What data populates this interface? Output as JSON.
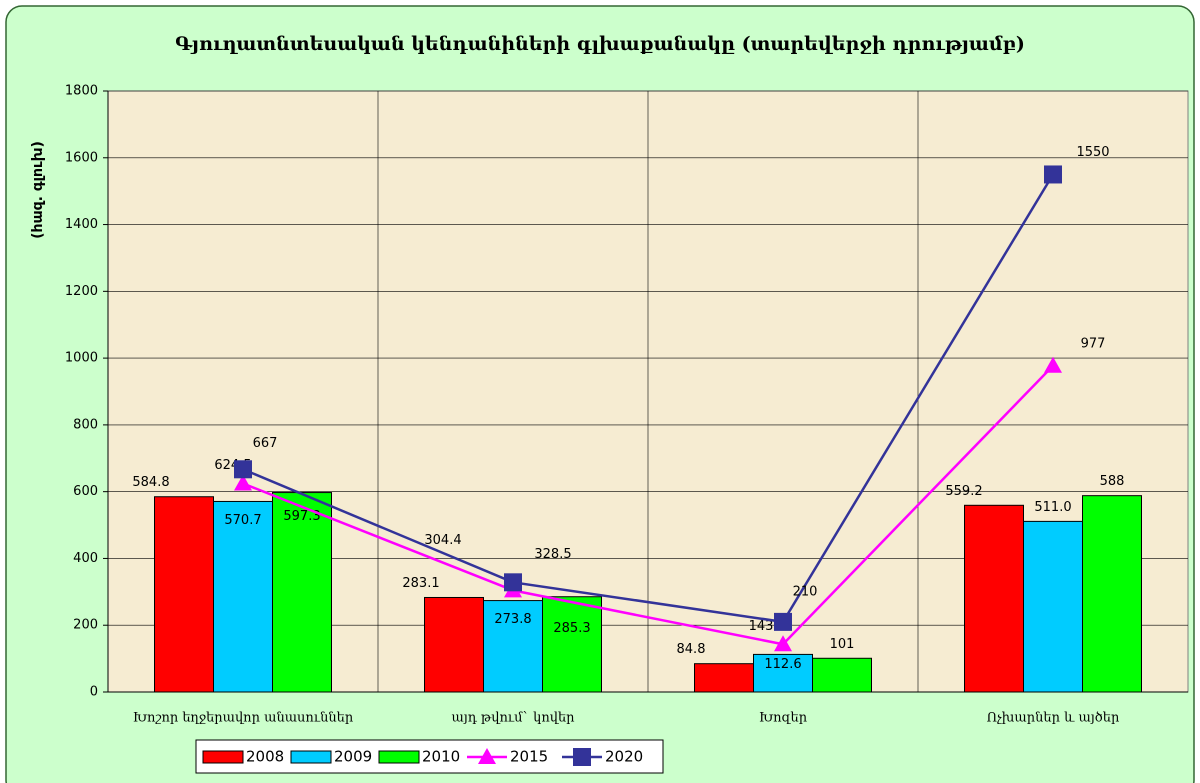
{
  "chart_data": {
    "type": "bar",
    "title": "Գյուղատնտեսական կենդանիների գլխաքանակը (տարեվերջի դրությամբ)",
    "y_label": "(հազ. գլուխ)",
    "categories": [
      "Խոշոր եղջերավոր անասուններ",
      "այդ թվում` կովեր",
      "Խոզեր",
      "Ոչխարներ և այծեր"
    ],
    "series": [
      {
        "name": "2008",
        "type": "bar",
        "color": "#ff0000",
        "values": [
          584.8,
          283.1,
          84.8,
          559.2
        ]
      },
      {
        "name": "2009",
        "type": "bar",
        "color": "#00ccff",
        "values": [
          570.7,
          273.8,
          112.6,
          511
        ],
        "value_labels": [
          "570.7",
          "273.8",
          "112.6",
          "511.0"
        ]
      },
      {
        "name": "2010",
        "type": "bar",
        "color": "#00ff00",
        "values": [
          597.3,
          285.3,
          101,
          588
        ]
      },
      {
        "name": "2015",
        "type": "line",
        "color": "#ff00ff",
        "marker": "triangle",
        "values": [
          624.5,
          304.4,
          143,
          977
        ]
      },
      {
        "name": "2020",
        "type": "line",
        "color": "#333399",
        "marker": "square",
        "values": [
          667,
          328.5,
          210,
          1550
        ]
      }
    ],
    "ylim": [
      0,
      1800
    ],
    "yticks": [
      0,
      200,
      400,
      600,
      800,
      1000,
      1200,
      1400,
      1600,
      1800
    ],
    "grid": true
  }
}
